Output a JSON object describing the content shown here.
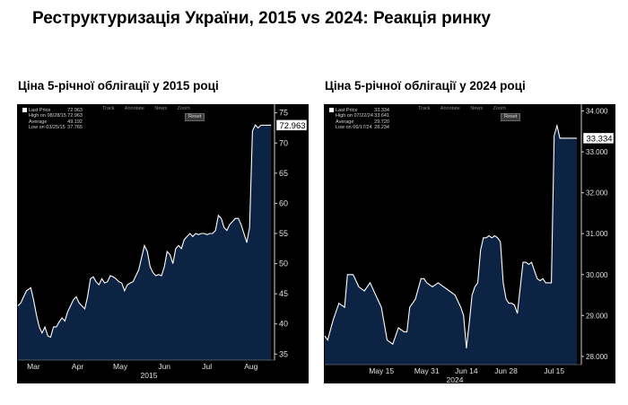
{
  "title": "Реструктуризація України, 2015 vs 2024: Реакція ринку",
  "chart_data": [
    {
      "type": "area",
      "title": "Ціна 5-річної облігації у 2015 році",
      "xlabel": "2015",
      "ylim": [
        34,
        76
      ],
      "y_ticks": [
        "35",
        "40",
        "45",
        "50",
        "55",
        "60",
        "65",
        "70",
        "75"
      ],
      "x_ticks": [
        {
          "label": "Mar",
          "day": 11
        },
        {
          "label": "Apr",
          "day": 42
        },
        {
          "label": "May",
          "day": 72
        },
        {
          "label": "Jun",
          "day": 103
        },
        {
          "label": "Jul",
          "day": 133
        },
        {
          "label": "Aug",
          "day": 164
        }
      ],
      "last_price_label": "72.963",
      "legend": [
        {
          "label": "Last Price",
          "value": "72.963"
        },
        {
          "label": "High on 08/28/15",
          "value": "72.963"
        },
        {
          "label": "Average",
          "value": "49.192"
        },
        {
          "label": "Low on 03/25/15",
          "value": "37.765"
        }
      ],
      "toolbar": [
        "Track",
        "Annotate",
        "News",
        "Zoom"
      ],
      "reset_label": "Reset",
      "series": [
        {
          "x": [
            0,
            2,
            4,
            6,
            9,
            11,
            13,
            15,
            17,
            19,
            21,
            23,
            25,
            27,
            29,
            31,
            33,
            35,
            37,
            39,
            41,
            43,
            45,
            47,
            49,
            51,
            53,
            55,
            57,
            59,
            61,
            63,
            65,
            67,
            69,
            71,
            73,
            75,
            77,
            79,
            81,
            83,
            85,
            87,
            89,
            91,
            93,
            95,
            97,
            99,
            101,
            103,
            105,
            107,
            109,
            111,
            113,
            115,
            117,
            119,
            121,
            123,
            125,
            127,
            129,
            131,
            133,
            135,
            137,
            139,
            141,
            143,
            145,
            147,
            149,
            151,
            153,
            155,
            157,
            159,
            161,
            163,
            165,
            167,
            169,
            171,
            173,
            175,
            176,
            178
          ],
          "y": [
            43,
            43.5,
            44.5,
            45.5,
            46,
            44,
            41.5,
            39.5,
            38.5,
            39.5,
            38,
            37.8,
            39.5,
            39.5,
            40.3,
            41,
            40.5,
            42,
            43,
            44,
            44.5,
            43.5,
            43,
            42.5,
            44.5,
            47.5,
            47.8,
            47,
            46.5,
            47.5,
            46.8,
            47,
            48,
            47.8,
            47.5,
            47,
            46.8,
            45.5,
            46.5,
            46.8,
            47,
            48,
            49,
            51,
            53,
            52,
            49.5,
            48.5,
            48,
            48.2,
            48,
            49.5,
            52,
            51.5,
            50,
            52.5,
            53,
            52.5,
            54,
            54.5,
            55,
            54.5,
            55,
            54.8,
            55,
            55,
            54.8,
            55,
            55,
            55.5,
            58,
            57.5,
            56,
            55.5,
            56.5,
            57,
            57.5,
            57.5,
            56.5,
            55,
            53.5,
            56,
            72,
            73,
            72.5,
            72.963,
            72.963,
            72.963,
            72.963,
            72.963
          ]
        }
      ]
    },
    {
      "type": "area",
      "title": "Ціна 5-річної облігації у 2024 році",
      "xlabel": "2024",
      "ylim": [
        27.8,
        34.1
      ],
      "y_ticks": [
        "28.000",
        "29.000",
        "30.000",
        "31.000",
        "32.000",
        "33.000",
        "34.000"
      ],
      "x_ticks": [
        {
          "label": "May 15",
          "day": 20
        },
        {
          "label": "May 31",
          "day": 36
        },
        {
          "label": "Jun 14",
          "day": 50
        },
        {
          "label": "Jun 28",
          "day": 64
        },
        {
          "label": "Jul 15",
          "day": 81
        }
      ],
      "last_price_label": "33.334",
      "legend": [
        {
          "label": "Last Price",
          "value": "33.334"
        },
        {
          "label": "High on 07/22/24",
          "value": "33.641"
        },
        {
          "label": "Average",
          "value": "29.720"
        },
        {
          "label": "Low on 06/17/24",
          "value": "28.234"
        }
      ],
      "toolbar": [
        "Track",
        "Annotate",
        "News",
        "Zoom"
      ],
      "reset_label": "Reset",
      "series": [
        {
          "x": [
            0,
            1,
            3,
            5,
            7,
            8,
            10,
            12,
            14,
            16,
            18,
            20,
            22,
            24,
            26,
            28,
            29,
            30,
            31,
            32,
            34,
            35,
            36,
            38,
            40,
            42,
            44,
            46,
            48,
            49,
            50,
            51,
            52,
            53,
            54,
            55,
            56,
            57,
            58,
            59,
            60,
            61,
            62,
            63,
            64,
            65,
            66,
            67,
            68,
            70,
            71,
            72,
            73,
            74,
            75,
            76,
            77,
            78,
            80,
            81,
            82,
            83,
            84,
            85,
            86,
            87,
            88,
            89
          ],
          "y": [
            28.5,
            28.4,
            28.9,
            29.3,
            29.2,
            30,
            30,
            29.7,
            29.6,
            29.8,
            29.5,
            29.2,
            28.4,
            28.3,
            28.7,
            28.6,
            28.6,
            29.2,
            29.3,
            29.4,
            29.9,
            29.9,
            29.8,
            29.7,
            29.8,
            29.7,
            29.6,
            29.5,
            29.2,
            29,
            28.2,
            28.8,
            29.5,
            29.7,
            29.8,
            30.6,
            30.9,
            30.9,
            30.95,
            30.9,
            30.95,
            30.9,
            30.8,
            29.8,
            29.4,
            29.3,
            29.3,
            29.25,
            29.05,
            30.3,
            30.3,
            30.25,
            30.3,
            30.1,
            29.9,
            29.85,
            29.9,
            29.8,
            29.8,
            33.4,
            33.641,
            33.334,
            33.334,
            33.334,
            33.334,
            33.334,
            33.334,
            33.334
          ]
        }
      ]
    }
  ]
}
